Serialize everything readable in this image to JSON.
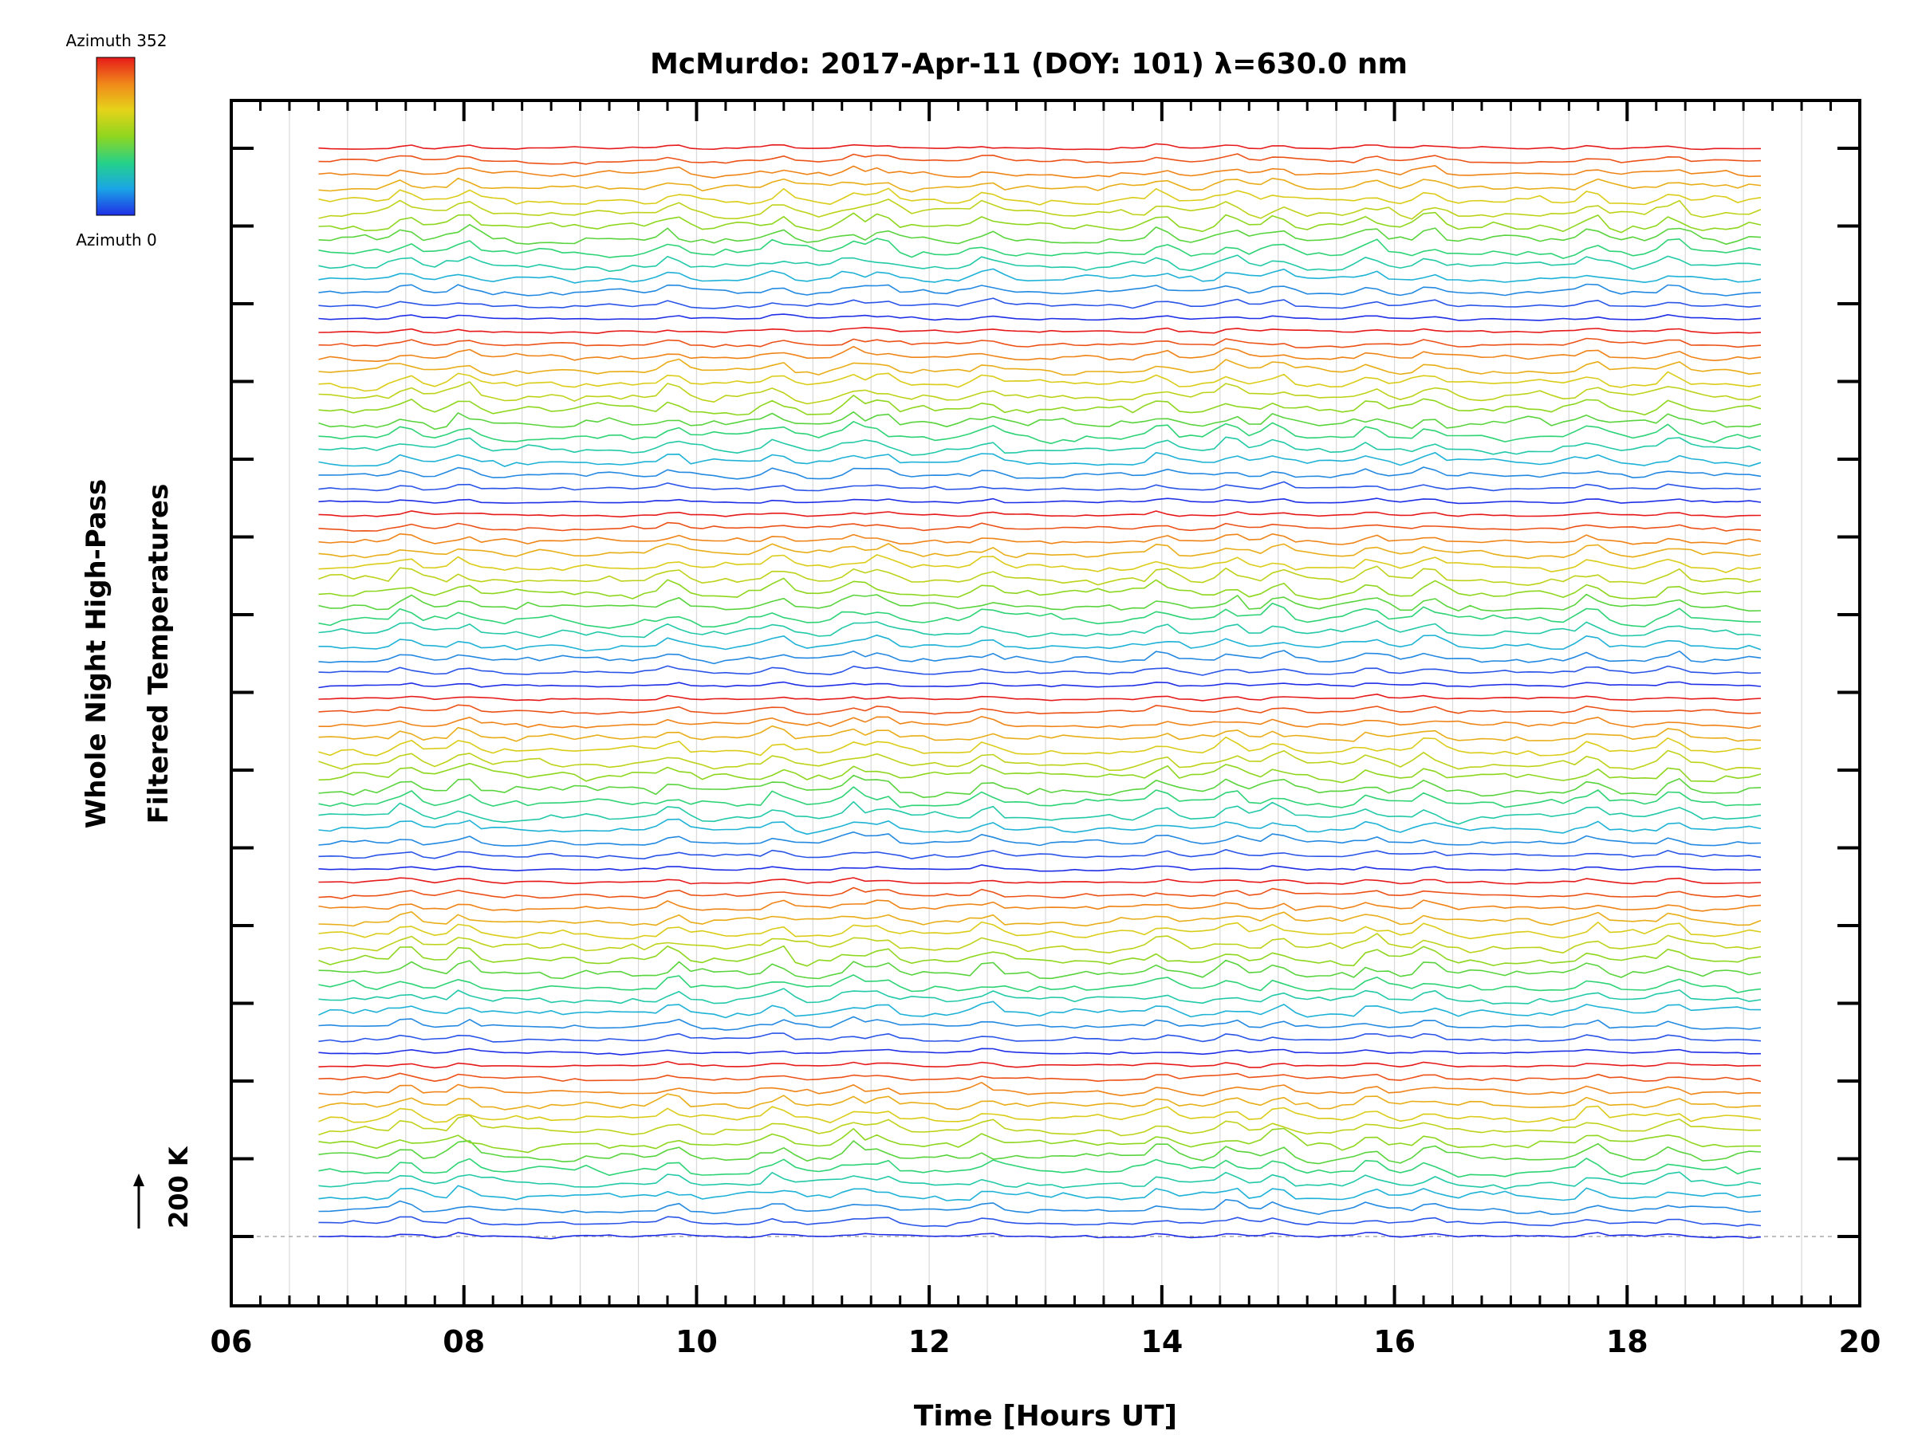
{
  "chart_data": {
    "type": "line",
    "title": "McMurdo: 2017-Apr-11 (DOY: 101) λ=630.0 nm",
    "xlabel": "Time [Hours UT]",
    "ylabel_line1": "Whole Night High-Pass",
    "ylabel_line2": "Filtered Temperatures",
    "scale_label": "200 K",
    "x_range": [
      6,
      20
    ],
    "x_ticks": [
      "06",
      "08",
      "10",
      "12",
      "14",
      "16",
      "18",
      "20"
    ],
    "x_tick_values": [
      6,
      8,
      10,
      12,
      14,
      16,
      18,
      20
    ],
    "y_major_ticks": 15,
    "colorbar": {
      "top_label": "Azimuth 352",
      "bottom_label": "Azimuth 0",
      "colors": [
        "#1f2fe6",
        "#1aa6e6",
        "#25d18a",
        "#8fd61f",
        "#e6d21a",
        "#f08a1a",
        "#e61a1a"
      ]
    },
    "data_time_range": [
      6.75,
      19.15
    ],
    "sample_spacing_hours": 0.1,
    "band_count": 6,
    "band_colors": [
      "#1f2fe6",
      "#2a55e8",
      "#2489e0",
      "#1fb2d6",
      "#23c9a8",
      "#2ed376",
      "#5ad43e",
      "#8fd61f",
      "#bfd21b",
      "#dccc1a",
      "#e9ad19",
      "#ef8418",
      "#ec5218",
      "#e61a1a"
    ],
    "event_times": [
      7.5,
      8.0,
      9.8,
      10.7,
      11.35,
      11.6,
      12.5,
      14.0,
      14.6,
      15.0,
      15.8,
      16.3,
      17.7,
      18.4
    ],
    "series_count": 84
  }
}
